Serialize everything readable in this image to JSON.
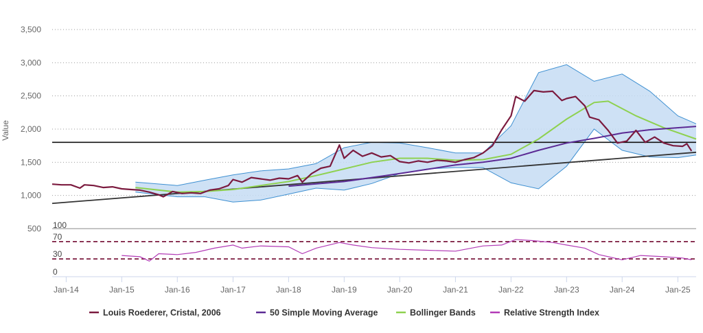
{
  "chart_data": {
    "type": "line",
    "title": "",
    "xlabel": "",
    "ylabel": "Value",
    "ylim": [
      500,
      3500
    ],
    "yticks": [
      500,
      1000,
      1500,
      2000,
      2500,
      3000,
      3500
    ],
    "ytick_labels": [
      "500",
      "1,000",
      "1,500",
      "2,000",
      "2,500",
      "3,000",
      "3,500"
    ],
    "xlim": [
      "2013-10-01",
      "2025-05-01"
    ],
    "xticks": [
      "2014-01-01",
      "2015-01-01",
      "2016-01-01",
      "2017-01-01",
      "2018-01-01",
      "2019-01-01",
      "2020-01-01",
      "2021-01-01",
      "2022-01-01",
      "2023-01-01",
      "2024-01-01",
      "2025-01-01"
    ],
    "xtick_labels": [
      "Jan-14",
      "Jan-15",
      "Jan-16",
      "Jan-17",
      "Jan-18",
      "Jan-19",
      "Jan-20",
      "Jan-21",
      "Jan-22",
      "Jan-23",
      "Jan-24",
      "Jan-25"
    ],
    "grid": true,
    "legend_position": "bottom",
    "colors": {
      "price": "#7b1a3e",
      "sma": "#5b2a94",
      "bollinger_mid": "#8ed14f",
      "bollinger_band_fill": "#c5dcf3",
      "bollinger_band_stroke": "#3d8fd1",
      "rsi": "#b23ab6",
      "trend": "#333333",
      "resistance": "#111111",
      "rsi_levels": "#7b1a3e"
    },
    "reference_lines": {
      "horizontal": 1800
    },
    "trend_line": {
      "x": [
        "2013-10-01",
        "2025-05-01"
      ],
      "y": [
        880,
        1650
      ]
    },
    "rsi_panel": {
      "ylim": [
        0,
        100
      ],
      "ytick_labels": [
        "100",
        "70",
        "30",
        "0"
      ],
      "levels": [
        70,
        30
      ]
    },
    "series": [
      {
        "name": "Louis Roederer, Cristal, 2006",
        "points": [
          [
            "2013-10-01",
            1170
          ],
          [
            "2013-12-01",
            1160
          ],
          [
            "2014-02-01",
            1160
          ],
          [
            "2014-04-01",
            1110
          ],
          [
            "2014-05-01",
            1160
          ],
          [
            "2014-07-01",
            1150
          ],
          [
            "2014-09-01",
            1120
          ],
          [
            "2014-11-01",
            1130
          ],
          [
            "2015-01-01",
            1100
          ],
          [
            "2015-03-01",
            1090
          ],
          [
            "2015-05-01",
            1080
          ],
          [
            "2015-07-01",
            1050
          ],
          [
            "2015-09-01",
            1010
          ],
          [
            "2015-10-01",
            980
          ],
          [
            "2015-12-01",
            1060
          ],
          [
            "2016-02-01",
            1030
          ],
          [
            "2016-04-01",
            1040
          ],
          [
            "2016-06-01",
            1030
          ],
          [
            "2016-08-01",
            1080
          ],
          [
            "2016-10-01",
            1100
          ],
          [
            "2016-12-01",
            1150
          ],
          [
            "2017-01-01",
            1240
          ],
          [
            "2017-03-01",
            1200
          ],
          [
            "2017-05-01",
            1270
          ],
          [
            "2017-07-01",
            1250
          ],
          [
            "2017-09-01",
            1230
          ],
          [
            "2017-11-01",
            1260
          ],
          [
            "2018-01-01",
            1250
          ],
          [
            "2018-03-01",
            1300
          ],
          [
            "2018-04-01",
            1200
          ],
          [
            "2018-06-01",
            1330
          ],
          [
            "2018-08-01",
            1410
          ],
          [
            "2018-10-01",
            1440
          ],
          [
            "2018-12-01",
            1760
          ],
          [
            "2019-01-01",
            1560
          ],
          [
            "2019-03-01",
            1680
          ],
          [
            "2019-05-01",
            1590
          ],
          [
            "2019-07-01",
            1640
          ],
          [
            "2019-09-01",
            1580
          ],
          [
            "2019-11-01",
            1600
          ],
          [
            "2020-01-01",
            1510
          ],
          [
            "2020-03-01",
            1490
          ],
          [
            "2020-05-01",
            1520
          ],
          [
            "2020-07-01",
            1500
          ],
          [
            "2020-09-01",
            1530
          ],
          [
            "2020-11-01",
            1520
          ],
          [
            "2021-01-01",
            1500
          ],
          [
            "2021-03-01",
            1540
          ],
          [
            "2021-05-01",
            1570
          ],
          [
            "2021-07-01",
            1640
          ],
          [
            "2021-09-01",
            1750
          ],
          [
            "2021-11-01",
            1990
          ],
          [
            "2022-01-01",
            2200
          ],
          [
            "2022-02-01",
            2490
          ],
          [
            "2022-04-01",
            2420
          ],
          [
            "2022-06-01",
            2580
          ],
          [
            "2022-08-01",
            2560
          ],
          [
            "2022-10-01",
            2570
          ],
          [
            "2022-12-01",
            2430
          ],
          [
            "2023-01-01",
            2460
          ],
          [
            "2023-03-01",
            2490
          ],
          [
            "2023-05-01",
            2350
          ],
          [
            "2023-06-01",
            2180
          ],
          [
            "2023-08-01",
            2140
          ],
          [
            "2023-10-01",
            1980
          ],
          [
            "2023-12-01",
            1790
          ],
          [
            "2024-02-01",
            1820
          ],
          [
            "2024-04-01",
            1980
          ],
          [
            "2024-06-01",
            1800
          ],
          [
            "2024-08-01",
            1880
          ],
          [
            "2024-10-01",
            1790
          ],
          [
            "2024-12-01",
            1750
          ],
          [
            "2025-02-01",
            1740
          ],
          [
            "2025-03-01",
            1780
          ],
          [
            "2025-04-01",
            1670
          ]
        ]
      },
      {
        "name": "50 Simple Moving Average",
        "points": [
          [
            "2018-01-01",
            1140
          ],
          [
            "2019-01-01",
            1210
          ],
          [
            "2020-01-01",
            1330
          ],
          [
            "2021-01-01",
            1460
          ],
          [
            "2021-07-01",
            1500
          ],
          [
            "2022-01-01",
            1560
          ],
          [
            "2022-07-01",
            1680
          ],
          [
            "2023-01-01",
            1790
          ],
          [
            "2023-07-01",
            1860
          ],
          [
            "2024-01-01",
            1940
          ],
          [
            "2024-07-01",
            1990
          ],
          [
            "2025-05-01",
            2040
          ]
        ]
      },
      {
        "name": "Bollinger Bands",
        "points": [
          [
            "2015-04-01",
            1120
          ],
          [
            "2016-01-01",
            1050
          ],
          [
            "2016-07-01",
            1060
          ],
          [
            "2017-01-01",
            1090
          ],
          [
            "2017-07-01",
            1150
          ],
          [
            "2018-01-01",
            1210
          ],
          [
            "2018-07-01",
            1300
          ],
          [
            "2019-01-01",
            1400
          ],
          [
            "2019-07-01",
            1500
          ],
          [
            "2020-01-01",
            1560
          ],
          [
            "2020-07-01",
            1560
          ],
          [
            "2021-01-01",
            1530
          ],
          [
            "2021-07-01",
            1540
          ],
          [
            "2022-01-01",
            1620
          ],
          [
            "2022-07-01",
            1850
          ],
          [
            "2023-01-01",
            2150
          ],
          [
            "2023-07-01",
            2400
          ],
          [
            "2023-10-01",
            2420
          ],
          [
            "2024-04-01",
            2200
          ],
          [
            "2024-10-01",
            2020
          ],
          [
            "2025-05-01",
            1850
          ]
        ],
        "upper": [
          [
            "2015-04-01",
            1200
          ],
          [
            "2016-01-01",
            1150
          ],
          [
            "2016-07-01",
            1230
          ],
          [
            "2017-01-01",
            1310
          ],
          [
            "2017-07-01",
            1370
          ],
          [
            "2018-01-01",
            1400
          ],
          [
            "2018-07-01",
            1480
          ],
          [
            "2019-01-01",
            1720
          ],
          [
            "2019-07-01",
            1800
          ],
          [
            "2020-01-01",
            1790
          ],
          [
            "2020-07-01",
            1720
          ],
          [
            "2021-01-01",
            1640
          ],
          [
            "2021-07-01",
            1640
          ],
          [
            "2022-01-01",
            2050
          ],
          [
            "2022-07-01",
            2850
          ],
          [
            "2023-01-01",
            2970
          ],
          [
            "2023-07-01",
            2720
          ],
          [
            "2024-01-01",
            2830
          ],
          [
            "2024-07-01",
            2570
          ],
          [
            "2025-01-01",
            2200
          ],
          [
            "2025-05-01",
            2080
          ]
        ],
        "lower": [
          [
            "2015-04-01",
            1050
          ],
          [
            "2016-01-01",
            980
          ],
          [
            "2016-07-01",
            980
          ],
          [
            "2017-01-01",
            900
          ],
          [
            "2017-07-01",
            930
          ],
          [
            "2018-01-01",
            1020
          ],
          [
            "2018-07-01",
            1110
          ],
          [
            "2019-01-01",
            1080
          ],
          [
            "2019-07-01",
            1180
          ],
          [
            "2020-01-01",
            1330
          ],
          [
            "2020-07-01",
            1400
          ],
          [
            "2021-01-01",
            1420
          ],
          [
            "2021-07-01",
            1420
          ],
          [
            "2022-01-01",
            1190
          ],
          [
            "2022-07-01",
            1100
          ],
          [
            "2023-01-01",
            1440
          ],
          [
            "2023-07-01",
            2000
          ],
          [
            "2024-01-01",
            1680
          ],
          [
            "2024-07-01",
            1580
          ],
          [
            "2025-01-01",
            1570
          ],
          [
            "2025-05-01",
            1610
          ]
        ]
      },
      {
        "name": "Relative Strength Index",
        "points": [
          [
            "2015-01-01",
            38
          ],
          [
            "2015-05-01",
            35
          ],
          [
            "2015-07-01",
            25
          ],
          [
            "2015-09-01",
            42
          ],
          [
            "2016-01-01",
            40
          ],
          [
            "2016-05-01",
            45
          ],
          [
            "2016-09-01",
            55
          ],
          [
            "2017-01-01",
            62
          ],
          [
            "2017-03-01",
            55
          ],
          [
            "2017-07-01",
            60
          ],
          [
            "2018-01-01",
            58
          ],
          [
            "2018-04-01",
            42
          ],
          [
            "2018-07-01",
            55
          ],
          [
            "2018-12-01",
            68
          ],
          [
            "2019-03-01",
            62
          ],
          [
            "2019-07-01",
            56
          ],
          [
            "2020-01-01",
            52
          ],
          [
            "2020-07-01",
            50
          ],
          [
            "2021-01-01",
            48
          ],
          [
            "2021-07-01",
            60
          ],
          [
            "2021-11-01",
            62
          ],
          [
            "2022-02-01",
            75
          ],
          [
            "2022-06-01",
            72
          ],
          [
            "2022-10-01",
            68
          ],
          [
            "2023-01-01",
            62
          ],
          [
            "2023-05-01",
            55
          ],
          [
            "2023-08-01",
            40
          ],
          [
            "2024-01-01",
            28
          ],
          [
            "2024-05-01",
            38
          ],
          [
            "2024-10-01",
            35
          ],
          [
            "2025-02-01",
            32
          ],
          [
            "2025-04-01",
            28
          ]
        ]
      }
    ]
  }
}
